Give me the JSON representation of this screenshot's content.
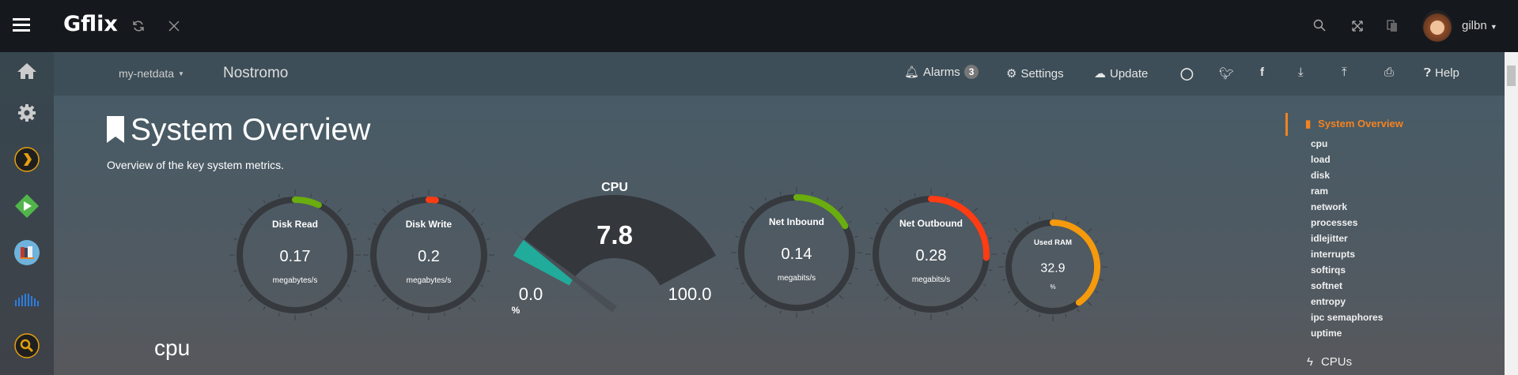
{
  "topbar": {
    "app_title": "Gflix",
    "user": "gilbn",
    "icons": [
      "menu-icon",
      "refresh-icon",
      "close-icon",
      "search-icon",
      "fullscreen-icon",
      "translate-icon",
      "avatar"
    ]
  },
  "sidebar": {
    "items": [
      {
        "name": "home-icon"
      },
      {
        "name": "settings-icon"
      },
      {
        "name": "plex-icon"
      },
      {
        "name": "emby-icon"
      },
      {
        "name": "books-icon"
      },
      {
        "name": "soundcloud-icon"
      },
      {
        "name": "search-app-icon"
      }
    ]
  },
  "navbar": {
    "host_menu": "my-netdata",
    "hostname": "Nostromo",
    "alarms_label": "Alarms",
    "alarms_count": "3",
    "settings_label": "Settings",
    "update_label": "Update",
    "help_label": "Help",
    "icons": [
      "github-icon",
      "twitter-icon",
      "facebook-icon",
      "download-icon",
      "upload-icon",
      "print-icon"
    ]
  },
  "main": {
    "title": "System Overview",
    "subtitle": "Overview of the key system metrics.",
    "section": "cpu"
  },
  "gauges": [
    {
      "title": "Disk Read",
      "value": "0.17",
      "units": "megabytes/s",
      "fill": 0.07,
      "color": "#6aad0f"
    },
    {
      "title": "Disk Write",
      "value": "0.2",
      "units": "megabytes/s",
      "fill": 0.02,
      "color": "#ff3c14"
    },
    {
      "title": "Net Inbound",
      "value": "0.14",
      "units": "megabits/s",
      "fill": 0.17,
      "color": "#6aad0f"
    },
    {
      "title": "Net Outbound",
      "value": "0.28",
      "units": "megabits/s",
      "fill": 0.26,
      "color": "#ff3c14"
    },
    {
      "title": "Used RAM",
      "value": "32.9",
      "units": "%",
      "fill": 0.4,
      "color": "#f59a0c"
    }
  ],
  "cpu_gauge": {
    "title": "CPU",
    "value": "7.8",
    "min": "0.0",
    "max": "100.0",
    "units": "%",
    "percent": 7.8,
    "fill_color": "#21ab9a"
  },
  "right_nav": {
    "active": "System Overview",
    "items": [
      "cpu",
      "load",
      "disk",
      "ram",
      "network",
      "processes",
      "idlejitter",
      "interrupts",
      "softirqs",
      "softnet",
      "entropy",
      "ipc semaphores",
      "uptime"
    ],
    "next_section": "CPUs",
    "accent": "#f58220"
  }
}
